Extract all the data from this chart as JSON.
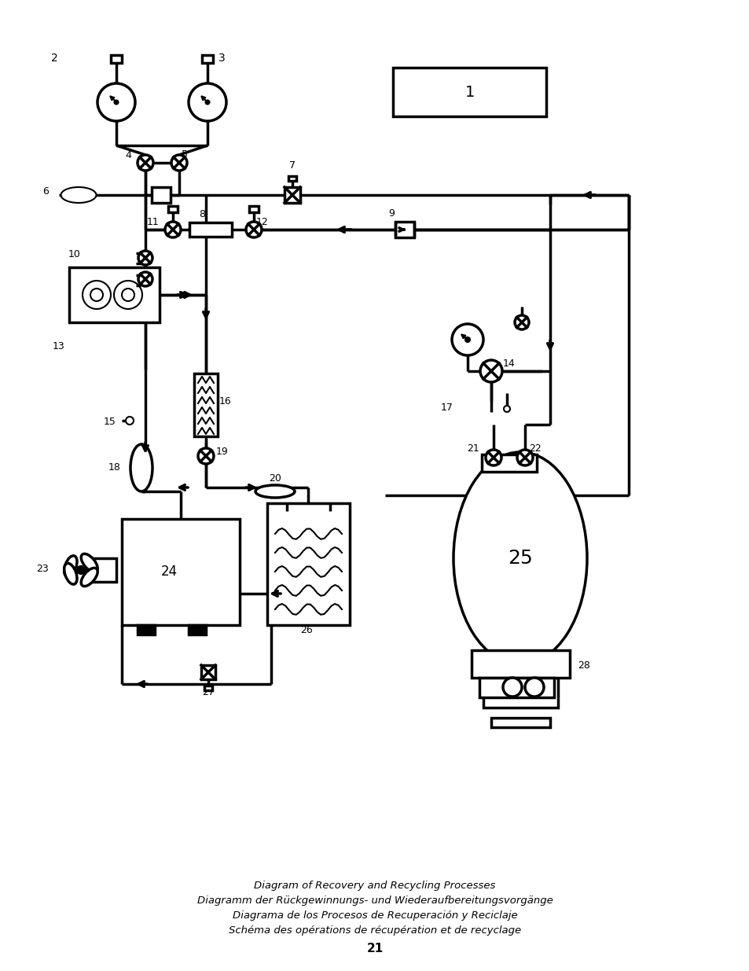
{
  "title_lines": [
    "Diagram of Recovery and Recycling Processes",
    "Diagramm der Rückgewinnungs- und Wiederaufbereitungsvorgänge",
    "Diagrama de los Procesos de Recuperación y Reciclaje",
    "Schéma des opérations de récupération et de recyclage"
  ],
  "page_number": "21",
  "bg_color": "#ffffff",
  "line_color": "#000000",
  "lw": 2.5,
  "tlw": 1.5
}
